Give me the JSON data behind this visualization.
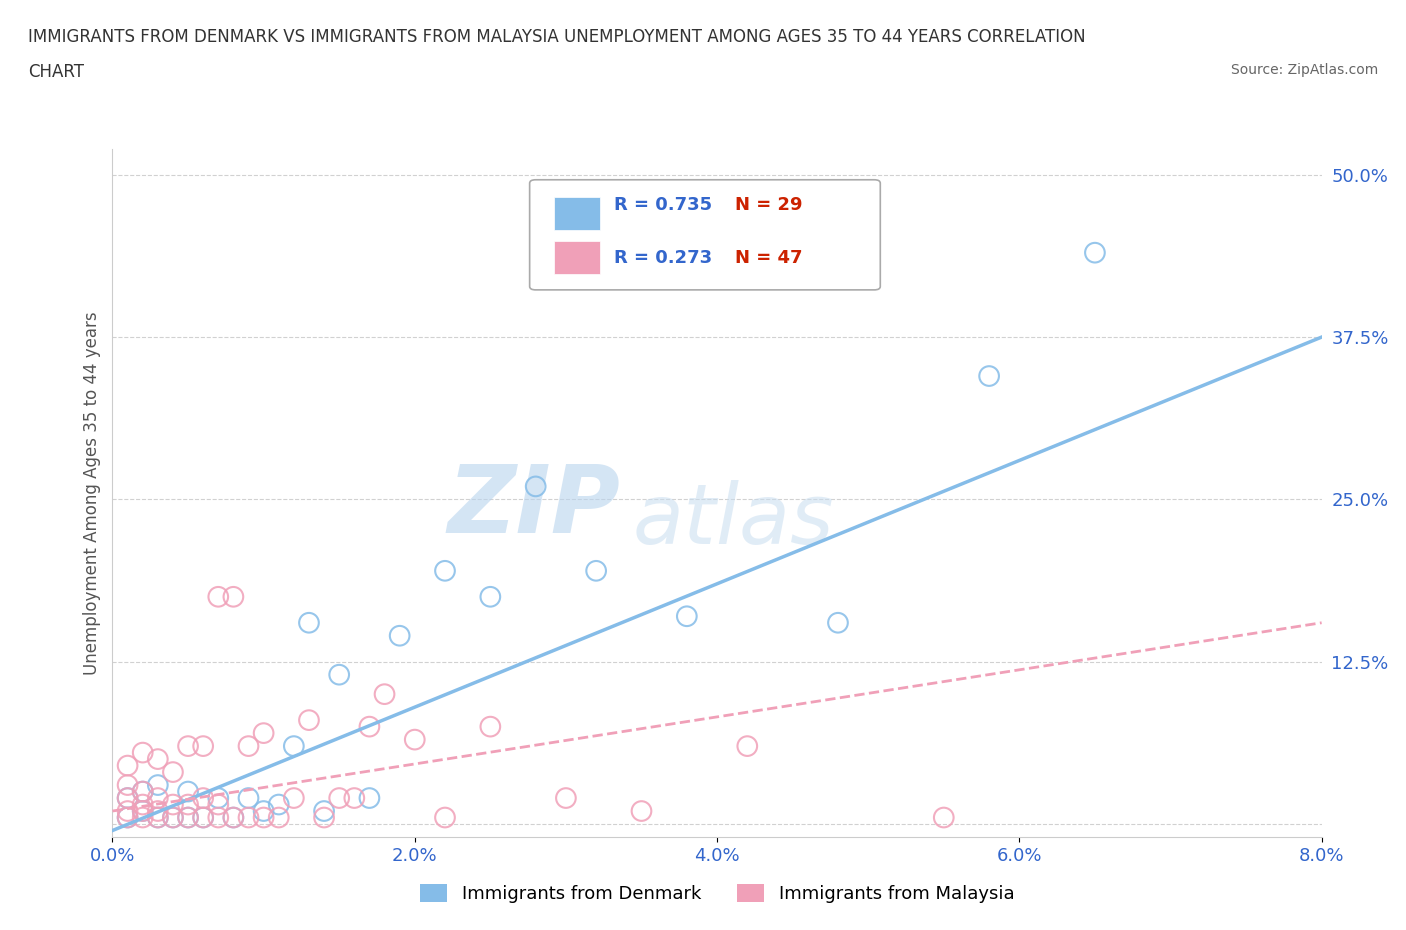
{
  "title_line1": "IMMIGRANTS FROM DENMARK VS IMMIGRANTS FROM MALAYSIA UNEMPLOYMENT AMONG AGES 35 TO 44 YEARS CORRELATION",
  "title_line2": "CHART",
  "source": "Source: ZipAtlas.com",
  "ylabel": "Unemployment Among Ages 35 to 44 years",
  "xlim": [
    0.0,
    0.08
  ],
  "ylim": [
    -0.01,
    0.52
  ],
  "xticks": [
    0.0,
    0.02,
    0.04,
    0.06,
    0.08
  ],
  "xtick_labels": [
    "0.0%",
    "2.0%",
    "4.0%",
    "6.0%",
    "8.0%"
  ],
  "yticks": [
    0.0,
    0.125,
    0.25,
    0.375,
    0.5
  ],
  "ytick_labels": [
    "",
    "12.5%",
    "25.0%",
    "37.5%",
    "50.0%"
  ],
  "denmark_color": "#85bce8",
  "malaysia_color": "#f0a0b8",
  "denmark_R": 0.735,
  "denmark_N": 29,
  "malaysia_R": 0.273,
  "malaysia_N": 47,
  "denmark_x": [
    0.001,
    0.001,
    0.002,
    0.002,
    0.003,
    0.003,
    0.004,
    0.005,
    0.005,
    0.006,
    0.007,
    0.008,
    0.009,
    0.01,
    0.011,
    0.012,
    0.013,
    0.014,
    0.015,
    0.017,
    0.019,
    0.022,
    0.025,
    0.028,
    0.032,
    0.038,
    0.048,
    0.058,
    0.065
  ],
  "denmark_y": [
    0.005,
    0.02,
    0.01,
    0.025,
    0.005,
    0.03,
    0.005,
    0.005,
    0.025,
    0.005,
    0.02,
    0.005,
    0.02,
    0.01,
    0.015,
    0.06,
    0.155,
    0.01,
    0.115,
    0.02,
    0.145,
    0.195,
    0.175,
    0.26,
    0.195,
    0.16,
    0.155,
    0.345,
    0.44
  ],
  "malaysia_x": [
    0.001,
    0.001,
    0.001,
    0.001,
    0.001,
    0.002,
    0.002,
    0.002,
    0.002,
    0.002,
    0.003,
    0.003,
    0.003,
    0.003,
    0.004,
    0.004,
    0.004,
    0.005,
    0.005,
    0.005,
    0.006,
    0.006,
    0.006,
    0.007,
    0.007,
    0.007,
    0.008,
    0.008,
    0.009,
    0.009,
    0.01,
    0.01,
    0.011,
    0.012,
    0.013,
    0.014,
    0.015,
    0.016,
    0.017,
    0.018,
    0.02,
    0.022,
    0.025,
    0.03,
    0.035,
    0.042,
    0.055
  ],
  "malaysia_y": [
    0.005,
    0.01,
    0.02,
    0.03,
    0.045,
    0.005,
    0.01,
    0.015,
    0.025,
    0.055,
    0.005,
    0.01,
    0.02,
    0.05,
    0.005,
    0.015,
    0.04,
    0.005,
    0.015,
    0.06,
    0.005,
    0.02,
    0.06,
    0.005,
    0.015,
    0.175,
    0.005,
    0.175,
    0.005,
    0.06,
    0.005,
    0.07,
    0.005,
    0.02,
    0.08,
    0.005,
    0.02,
    0.02,
    0.075,
    0.1,
    0.065,
    0.005,
    0.075,
    0.02,
    0.01,
    0.06,
    0.005
  ],
  "watermark_zip": "ZIP",
  "watermark_atlas": "atlas",
  "grid_color": "#cccccc",
  "background_color": "#ffffff",
  "trendline_denmark_x0": 0.0,
  "trendline_denmark_y0": -0.005,
  "trendline_denmark_x1": 0.08,
  "trendline_denmark_y1": 0.375,
  "trendline_malaysia_x0": 0.0,
  "trendline_malaysia_y0": 0.01,
  "trendline_malaysia_x1": 0.08,
  "trendline_malaysia_y1": 0.155
}
